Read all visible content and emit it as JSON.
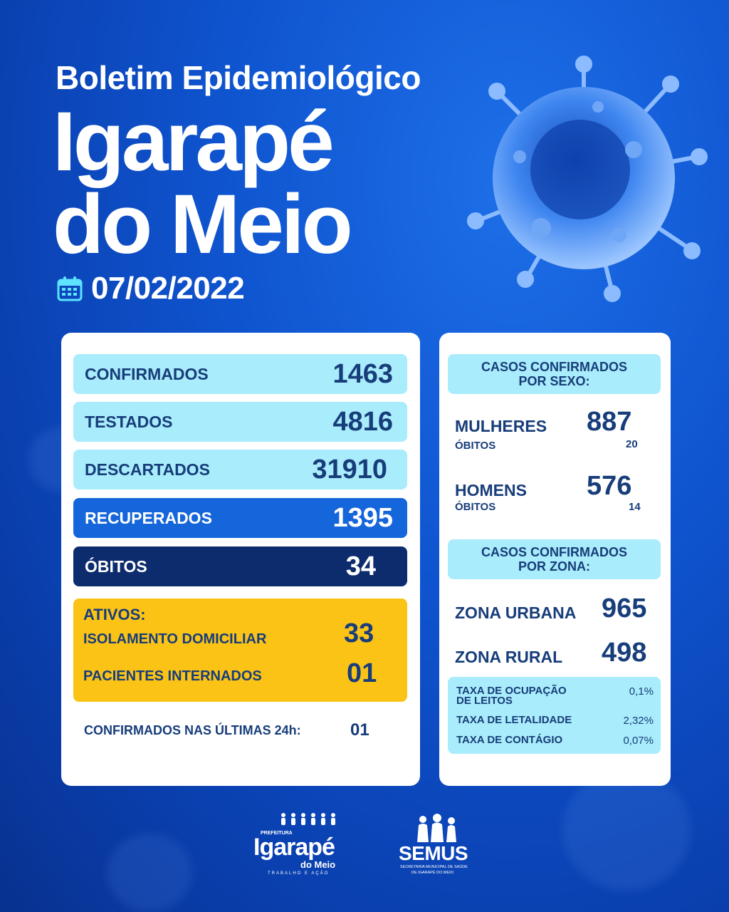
{
  "header": {
    "subtitle": "Boletim Epidemiológico",
    "city_line1": "Igarapé",
    "city_line2": "do Meio",
    "date": "07/02/2022"
  },
  "stats": {
    "confirmados": {
      "label": "CONFIRMADOS",
      "value": "1463"
    },
    "testados": {
      "label": "TESTADOS",
      "value": "4816"
    },
    "descartados": {
      "label": "DESCARTADOS",
      "value": "31910"
    },
    "recuperados": {
      "label": "RECUPERADOS",
      "value": "1395"
    },
    "obitos": {
      "label": "ÓBITOS",
      "value": "34"
    }
  },
  "ativos": {
    "title": "ATIVOS:",
    "isolamento_label": "ISOLAMENTO DOMICILIAR",
    "isolamento_value": "33",
    "internados_label": "PACIENTES INTERNADOS",
    "internados_value": "01"
  },
  "ultimas24": {
    "label": "CONFIRMADOS NAS ÚLTIMAS 24h:",
    "value": "01"
  },
  "por_sexo": {
    "heading_line1": "CASOS CONFIRMADOS",
    "heading_line2": "POR SEXO:",
    "mulheres_label": "MULHERES",
    "mulheres_value": "887",
    "mulheres_obitos_label": "ÓBITOS",
    "mulheres_obitos_value": "20",
    "homens_label": "HOMENS",
    "homens_value": "576",
    "homens_obitos_label": "ÓBITOS",
    "homens_obitos_value": "14"
  },
  "por_zona": {
    "heading_line1": "CASOS CONFIRMADOS",
    "heading_line2": "POR ZONA:",
    "urbana_label": "ZONA URBANA",
    "urbana_value": "965",
    "rural_label": "ZONA RURAL",
    "rural_value": "498"
  },
  "taxas": {
    "ocupacao_line1": "TAXA DE OCUPAÇÃO",
    "ocupacao_line2": "DE  LEITOS",
    "ocupacao_value": "0,1%",
    "letalidade_label": "TAXA DE LETALIDADE",
    "letalidade_value": "2,32%",
    "contagio_label": "TAXA DE CONTÁGIO",
    "contagio_value": "0,07%"
  },
  "logos": {
    "prefeitura_small": "PREFEITURA",
    "prefeitura_name": "Igarapé",
    "prefeitura_sub": "do Meio",
    "prefeitura_motto": "TRABALHO E AÇÃO",
    "semus_name": "SEMUS",
    "semus_sub1": "SECRETARIA MUNICIPAL DE SAÚDE",
    "semus_sub2": "DE IGARAPÉ DO MEIO"
  },
  "colors": {
    "background": "#0f54cf",
    "light_box": "#a9ecfb",
    "blue_box": "#1565db",
    "navy_box": "#0d2c6e",
    "yellow_box": "#fbc316",
    "text_dark": "#173d7a"
  }
}
